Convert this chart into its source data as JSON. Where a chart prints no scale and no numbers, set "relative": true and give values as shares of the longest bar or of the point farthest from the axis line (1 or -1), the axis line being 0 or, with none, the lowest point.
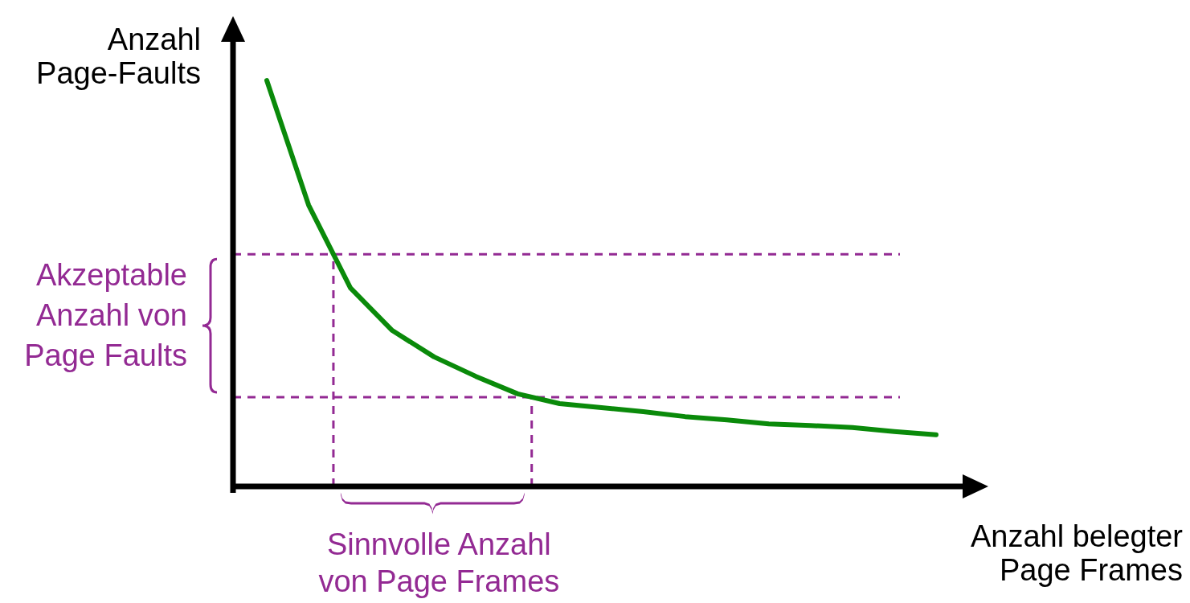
{
  "chart_data": {
    "type": "line",
    "relative": true,
    "xlabel": "Anzahl belegter\nPage Frames",
    "ylabel": "Anzahl\nPage-Faults",
    "categories": [
      null,
      null,
      null,
      null,
      null,
      null,
      null,
      null,
      null,
      null,
      null,
      null,
      null,
      null,
      null,
      null,
      null
    ],
    "series": [
      {
        "color": "#0a8a0a",
        "values": [
          1,
          0.693,
          0.489,
          0.384,
          0.319,
          0.271,
          0.228,
          0.204,
          0.194,
          0.184,
          0.172,
          0.164,
          0.154,
          0.15,
          0.145,
          0.135,
          0.127
        ]
      }
    ],
    "ref_lines": [
      {
        "axis": "y",
        "value": 0.572,
        "color": "#932a93",
        "line_style": "dashed"
      },
      {
        "axis": "y",
        "value": 0.22,
        "color": "#932a93",
        "line_style": "dashed"
      }
    ],
    "annotations": [
      "Akzeptable\nAnzahl von\nPage Faults",
      "Sinnvolle Anzahl\nvon Page Frames"
    ],
    "line_style": "solid"
  }
}
